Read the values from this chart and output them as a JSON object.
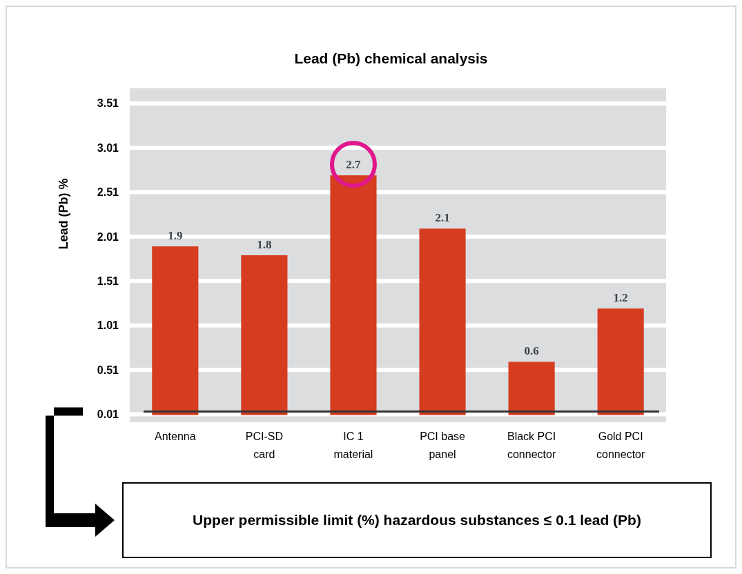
{
  "chart_data": {
    "type": "bar",
    "title": "Lead (Pb) chemical analysis",
    "ylabel": "Lead (Pb) %",
    "categories": [
      "Antenna",
      "PCI-SD card",
      "IC 1 material",
      "PCI base panel",
      "Black PCI connector",
      "Gold PCI connector"
    ],
    "values": [
      1.9,
      1.8,
      2.7,
      2.1,
      0.6,
      1.2
    ],
    "color": "#d63c20",
    "data_labels": true,
    "ylim": [
      -0.08,
      3.68
    ],
    "yticks": [
      0.01,
      0.51,
      1.01,
      1.51,
      2.01,
      2.51,
      3.01,
      3.51
    ],
    "grid": "y",
    "ref_lines": [
      {
        "axis": "y",
        "value": 0.04,
        "color": "#333333"
      }
    ],
    "annotations": [
      "Upper permissible limit (%) hazardous substances ≤ 0.1 lead (Pb)"
    ]
  }
}
